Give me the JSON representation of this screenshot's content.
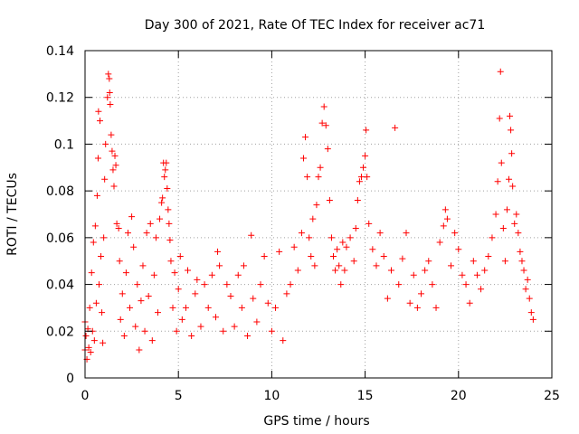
{
  "chart_data": {
    "type": "scatter",
    "title": "Day 300 of 2021, Rate Of TEC Index for receiver ac71",
    "xlabel": "GPS time / hours",
    "ylabel": "ROTI / TECUs",
    "xlim": [
      0,
      25
    ],
    "ylim": [
      0,
      0.14
    ],
    "xticks": [
      0,
      5,
      10,
      15,
      20,
      25
    ],
    "xtick_labels": [
      "0",
      "5",
      "10",
      "15",
      "20",
      "25"
    ],
    "yticks": [
      0,
      0.02,
      0.04,
      0.06,
      0.08,
      0.1,
      0.12,
      0.14
    ],
    "ytick_labels": [
      "0",
      "0.02",
      "0.04",
      "0.06",
      "0.08",
      "0.1",
      "0.12",
      "0.14"
    ],
    "grid": true,
    "marker": "+",
    "color": "#ff0000",
    "series": [
      {
        "name": "ROTI",
        "points": [
          [
            0.0,
            0.024
          ],
          [
            0.0,
            0.012
          ],
          [
            0.05,
            0.018
          ],
          [
            0.1,
            0.008
          ],
          [
            0.15,
            0.021
          ],
          [
            0.2,
            0.013
          ],
          [
            0.25,
            0.03
          ],
          [
            0.3,
            0.011
          ],
          [
            0.35,
            0.045
          ],
          [
            0.4,
            0.02
          ],
          [
            0.45,
            0.058
          ],
          [
            0.5,
            0.016
          ],
          [
            0.55,
            0.065
          ],
          [
            0.6,
            0.032
          ],
          [
            0.65,
            0.078
          ],
          [
            0.7,
            0.094
          ],
          [
            0.72,
            0.114
          ],
          [
            0.75,
            0.04
          ],
          [
            0.8,
            0.11
          ],
          [
            0.85,
            0.052
          ],
          [
            0.9,
            0.028
          ],
          [
            0.95,
            0.015
          ],
          [
            1.0,
            0.06
          ],
          [
            1.05,
            0.085
          ],
          [
            1.1,
            0.1
          ],
          [
            1.2,
            0.12
          ],
          [
            1.25,
            0.13
          ],
          [
            1.3,
            0.128
          ],
          [
            1.32,
            0.122
          ],
          [
            1.35,
            0.117
          ],
          [
            1.4,
            0.104
          ],
          [
            1.45,
            0.097
          ],
          [
            1.5,
            0.089
          ],
          [
            1.55,
            0.082
          ],
          [
            1.6,
            0.095
          ],
          [
            1.65,
            0.091
          ],
          [
            1.7,
            0.066
          ],
          [
            1.8,
            0.064
          ],
          [
            1.85,
            0.05
          ],
          [
            1.9,
            0.025
          ],
          [
            2.0,
            0.036
          ],
          [
            2.1,
            0.018
          ],
          [
            2.2,
            0.045
          ],
          [
            2.3,
            0.062
          ],
          [
            2.4,
            0.03
          ],
          [
            2.5,
            0.069
          ],
          [
            2.6,
            0.056
          ],
          [
            2.7,
            0.022
          ],
          [
            2.8,
            0.04
          ],
          [
            2.9,
            0.012
          ],
          [
            3.0,
            0.033
          ],
          [
            3.1,
            0.048
          ],
          [
            3.2,
            0.02
          ],
          [
            3.3,
            0.062
          ],
          [
            3.4,
            0.035
          ],
          [
            3.5,
            0.066
          ],
          [
            3.6,
            0.016
          ],
          [
            3.7,
            0.044
          ],
          [
            3.8,
            0.06
          ],
          [
            3.9,
            0.028
          ],
          [
            4.0,
            0.068
          ],
          [
            4.1,
            0.075
          ],
          [
            4.15,
            0.077
          ],
          [
            4.2,
            0.092
          ],
          [
            4.25,
            0.086
          ],
          [
            4.3,
            0.089
          ],
          [
            4.35,
            0.092
          ],
          [
            4.4,
            0.081
          ],
          [
            4.45,
            0.072
          ],
          [
            4.5,
            0.066
          ],
          [
            4.55,
            0.059
          ],
          [
            4.6,
            0.05
          ],
          [
            4.7,
            0.03
          ],
          [
            4.8,
            0.045
          ],
          [
            4.9,
            0.02
          ],
          [
            5.0,
            0.038
          ],
          [
            5.1,
            0.052
          ],
          [
            5.2,
            0.025
          ],
          [
            5.4,
            0.03
          ],
          [
            5.5,
            0.046
          ],
          [
            5.7,
            0.018
          ],
          [
            5.9,
            0.036
          ],
          [
            6.0,
            0.042
          ],
          [
            6.2,
            0.022
          ],
          [
            6.4,
            0.04
          ],
          [
            6.6,
            0.03
          ],
          [
            6.8,
            0.044
          ],
          [
            7.0,
            0.026
          ],
          [
            7.1,
            0.054
          ],
          [
            7.2,
            0.048
          ],
          [
            7.4,
            0.02
          ],
          [
            7.6,
            0.04
          ],
          [
            7.8,
            0.035
          ],
          [
            8.0,
            0.022
          ],
          [
            8.2,
            0.044
          ],
          [
            8.4,
            0.03
          ],
          [
            8.5,
            0.048
          ],
          [
            8.7,
            0.018
          ],
          [
            8.9,
            0.061
          ],
          [
            9.0,
            0.034
          ],
          [
            9.2,
            0.024
          ],
          [
            9.4,
            0.04
          ],
          [
            9.6,
            0.052
          ],
          [
            9.8,
            0.032
          ],
          [
            10.0,
            0.02
          ],
          [
            10.2,
            0.03
          ],
          [
            10.4,
            0.054
          ],
          [
            10.6,
            0.016
          ],
          [
            10.8,
            0.036
          ],
          [
            11.0,
            0.04
          ],
          [
            11.2,
            0.056
          ],
          [
            11.4,
            0.046
          ],
          [
            11.6,
            0.062
          ],
          [
            11.7,
            0.094
          ],
          [
            11.8,
            0.103
          ],
          [
            11.9,
            0.086
          ],
          [
            12.0,
            0.06
          ],
          [
            12.1,
            0.052
          ],
          [
            12.2,
            0.068
          ],
          [
            12.3,
            0.048
          ],
          [
            12.4,
            0.074
          ],
          [
            12.5,
            0.086
          ],
          [
            12.6,
            0.09
          ],
          [
            12.7,
            0.109
          ],
          [
            12.8,
            0.116
          ],
          [
            12.9,
            0.108
          ],
          [
            13.0,
            0.098
          ],
          [
            13.1,
            0.076
          ],
          [
            13.2,
            0.06
          ],
          [
            13.3,
            0.052
          ],
          [
            13.4,
            0.046
          ],
          [
            13.5,
            0.055
          ],
          [
            13.6,
            0.048
          ],
          [
            13.7,
            0.04
          ],
          [
            13.8,
            0.058
          ],
          [
            13.9,
            0.046
          ],
          [
            14.0,
            0.056
          ],
          [
            14.2,
            0.06
          ],
          [
            14.4,
            0.05
          ],
          [
            14.5,
            0.064
          ],
          [
            14.6,
            0.076
          ],
          [
            14.7,
            0.084
          ],
          [
            14.8,
            0.086
          ],
          [
            14.9,
            0.09
          ],
          [
            15.0,
            0.095
          ],
          [
            15.05,
            0.106
          ],
          [
            15.1,
            0.086
          ],
          [
            15.2,
            0.066
          ],
          [
            15.4,
            0.055
          ],
          [
            15.6,
            0.048
          ],
          [
            15.8,
            0.062
          ],
          [
            16.0,
            0.052
          ],
          [
            16.2,
            0.034
          ],
          [
            16.4,
            0.046
          ],
          [
            16.6,
            0.107
          ],
          [
            16.8,
            0.04
          ],
          [
            17.0,
            0.051
          ],
          [
            17.2,
            0.062
          ],
          [
            17.4,
            0.032
          ],
          [
            17.6,
            0.044
          ],
          [
            17.8,
            0.03
          ],
          [
            18.0,
            0.036
          ],
          [
            18.2,
            0.046
          ],
          [
            18.4,
            0.05
          ],
          [
            18.6,
            0.04
          ],
          [
            18.8,
            0.03
          ],
          [
            19.0,
            0.058
          ],
          [
            19.2,
            0.065
          ],
          [
            19.3,
            0.072
          ],
          [
            19.4,
            0.068
          ],
          [
            19.6,
            0.048
          ],
          [
            19.8,
            0.062
          ],
          [
            20.0,
            0.055
          ],
          [
            20.2,
            0.044
          ],
          [
            20.4,
            0.04
          ],
          [
            20.6,
            0.032
          ],
          [
            20.8,
            0.05
          ],
          [
            21.0,
            0.044
          ],
          [
            21.2,
            0.038
          ],
          [
            21.4,
            0.046
          ],
          [
            21.6,
            0.052
          ],
          [
            21.8,
            0.06
          ],
          [
            22.0,
            0.07
          ],
          [
            22.1,
            0.084
          ],
          [
            22.2,
            0.111
          ],
          [
            22.25,
            0.131
          ],
          [
            22.3,
            0.092
          ],
          [
            22.4,
            0.064
          ],
          [
            22.5,
            0.05
          ],
          [
            22.6,
            0.072
          ],
          [
            22.7,
            0.085
          ],
          [
            22.75,
            0.112
          ],
          [
            22.8,
            0.106
          ],
          [
            22.85,
            0.096
          ],
          [
            22.9,
            0.082
          ],
          [
            23.0,
            0.066
          ],
          [
            23.1,
            0.07
          ],
          [
            23.2,
            0.062
          ],
          [
            23.3,
            0.054
          ],
          [
            23.4,
            0.05
          ],
          [
            23.5,
            0.046
          ],
          [
            23.6,
            0.038
          ],
          [
            23.7,
            0.042
          ],
          [
            23.8,
            0.034
          ],
          [
            23.9,
            0.028
          ],
          [
            24.0,
            0.025
          ]
        ]
      }
    ]
  }
}
